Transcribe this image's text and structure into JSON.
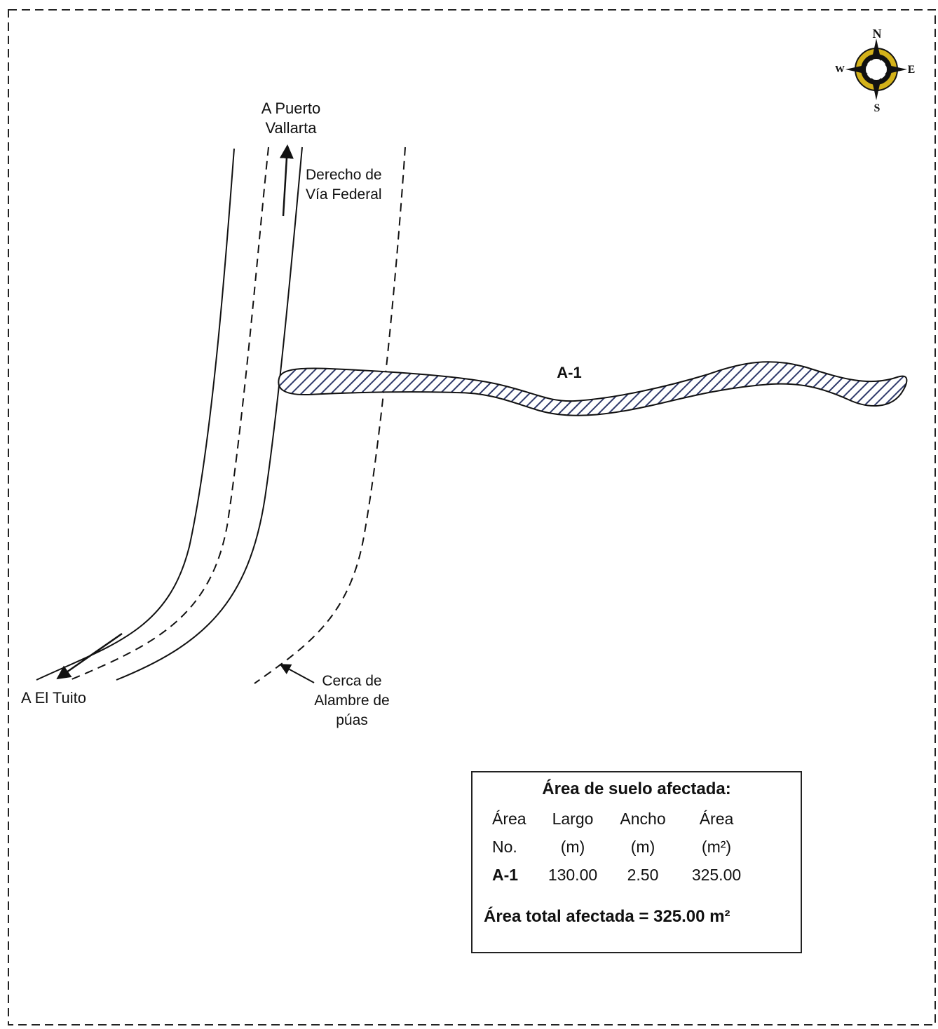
{
  "labels": {
    "to_puerto_vallarta": [
      "A Puerto",
      "Vallarta"
    ],
    "right_of_way": [
      "Derecho de",
      "Vía Federal"
    ],
    "to_el_tuito": "A El Tuito",
    "fence": [
      "Cerca de",
      "Alambre de",
      "púas"
    ],
    "area_id": "A-1"
  },
  "compass": {
    "north": "N",
    "south": "S",
    "east": "E",
    "west": "W"
  },
  "legend": {
    "title": "Área de suelo afectada:",
    "headers_line1": [
      "Área",
      "Largo",
      "Ancho",
      "Área"
    ],
    "headers_line2": [
      "No.",
      "(m)",
      "(m)",
      "(m²)"
    ],
    "rows": [
      {
        "id": "A-1",
        "largo": "130.00",
        "ancho": "2.50",
        "area": "325.00"
      }
    ],
    "total": "Área total afectada = 325.00 m²"
  },
  "colors": {
    "hatch": "#2f3a6b",
    "line": "#111111",
    "compass_gold": "#d4b21a"
  }
}
